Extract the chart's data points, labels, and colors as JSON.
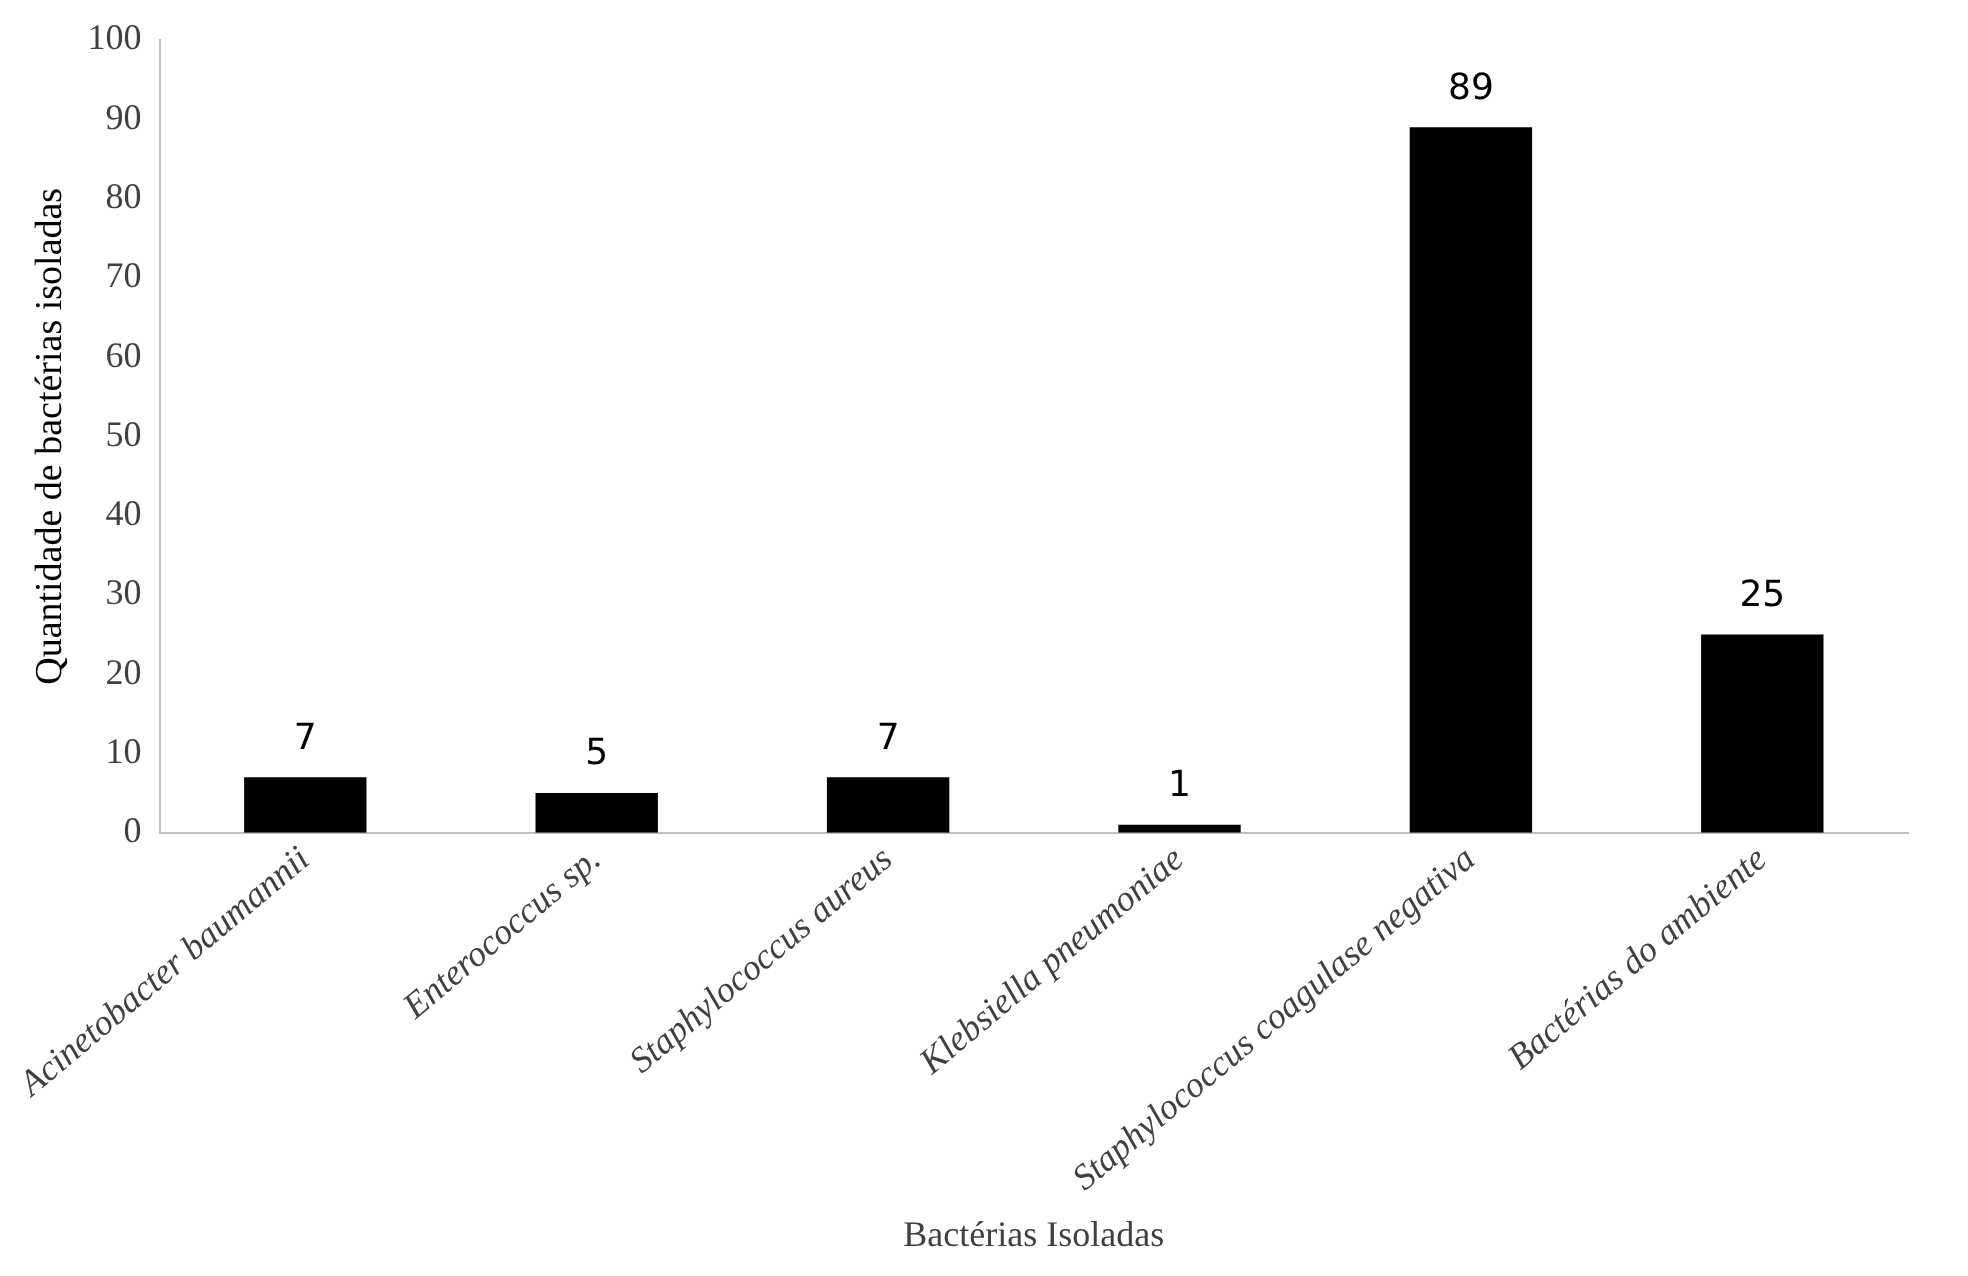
{
  "chart_data": {
    "type": "bar",
    "xlabel": "Bactérias Isoladas",
    "ylabel": "Quantidade de bactérias isoladas",
    "categories": [
      "Acinetobacter baumannii",
      "Enterococcus sp.",
      "Staphylococcus aureus",
      "Klebsiella pneumoniae",
      "Staphylococcus coagulase negativa",
      "Bactérias do ambiente"
    ],
    "values": [
      7,
      5,
      7,
      1,
      89,
      25
    ],
    "color": "#000000",
    "ylim": [
      0,
      100
    ],
    "yticks": [
      0,
      10,
      20,
      30,
      40,
      50,
      60,
      70,
      80,
      90,
      100
    ],
    "grid": false,
    "data_labels": true
  }
}
